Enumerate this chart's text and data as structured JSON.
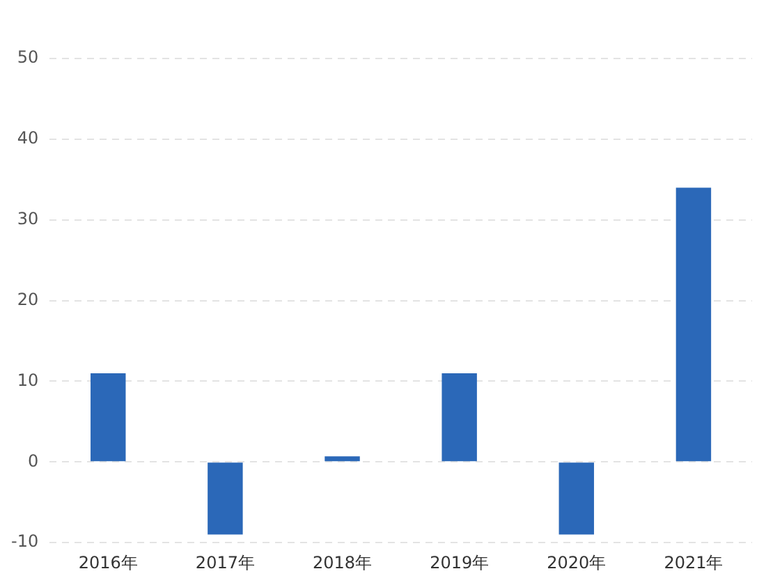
{
  "chart_data": {
    "type": "bar",
    "categories": [
      "2016年",
      "2017年",
      "2018年",
      "2019年",
      "2020年",
      "2021年"
    ],
    "values": [
      11,
      -9,
      0.7,
      11,
      -9,
      34
    ],
    "color": "#2b68b8",
    "ylim": [
      -10,
      50
    ],
    "yticks": [
      -10,
      0,
      10,
      20,
      30,
      40,
      50
    ],
    "grid": "y",
    "legend": false
  }
}
